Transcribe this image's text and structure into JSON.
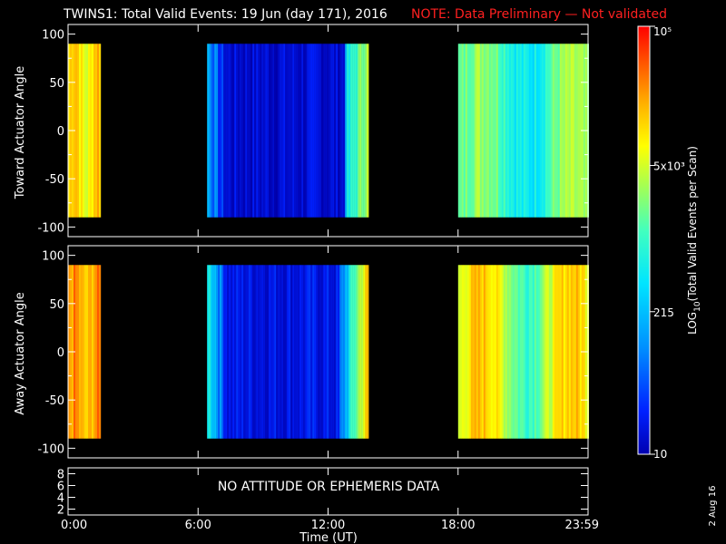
{
  "header": {
    "title": "TWINS1: Total Valid Events: 19 Jun (day 171), 2016",
    "note": "NOTE: Data Preliminary — Not validated"
  },
  "colors": {
    "background": "#000000",
    "axes": "#ffffff",
    "note_text": "#ff2020",
    "colormap": [
      "#0000b0",
      "#0020ff",
      "#0090ff",
      "#00e5ff",
      "#40ffc0",
      "#a8ff50",
      "#ffff00",
      "#ffb000",
      "#ff5000",
      "#ff0000"
    ]
  },
  "colorbar": {
    "label": "LOG10(Total Valid Events per Scan)",
    "label_base": "LOG",
    "label_sub": "10",
    "label_rest": "(Total Valid Events per Scan)",
    "ticks": [
      "10",
      "215",
      "5x10³",
      "10⁵"
    ],
    "tick_values": [
      10,
      215,
      5000,
      100000
    ],
    "scale": "log",
    "range": [
      10,
      100000
    ]
  },
  "chart_data": [
    {
      "type": "heatmap",
      "ylabel": "Toward Actuator Angle",
      "xlim": [
        0,
        24
      ],
      "ylim": [
        -110,
        110
      ],
      "yticks": [
        "100",
        "50",
        "0",
        "-50",
        "-100"
      ],
      "ytick_values": [
        100,
        50,
        0,
        -50,
        -100
      ],
      "data_angle_range": [
        -90,
        90
      ],
      "segments": [
        {
          "start": "00:00",
          "end": "01:30",
          "level": [
            0.62,
            0.78
          ]
        },
        {
          "start": "06:25",
          "end": "13:50",
          "level": [
            0.05,
            0.3
          ]
        },
        {
          "start": "18:00",
          "end": "23:59",
          "level": [
            0.35,
            0.55
          ]
        }
      ],
      "colormap_levels": [
        0.0,
        1.0
      ]
    },
    {
      "type": "heatmap",
      "ylabel": "Away Actuator Angle",
      "xlim": [
        0,
        24
      ],
      "ylim": [
        -110,
        110
      ],
      "yticks": [
        "100",
        "50",
        "0",
        "-50",
        "-100"
      ],
      "ytick_values": [
        100,
        50,
        0,
        -50,
        -100
      ],
      "data_angle_range": [
        -90,
        90
      ],
      "segments": [
        {
          "start": "00:00",
          "end": "01:30",
          "level": [
            0.72,
            0.82
          ]
        },
        {
          "start": "06:25",
          "end": "13:50",
          "level": [
            0.05,
            0.72
          ]
        },
        {
          "start": "18:00",
          "end": "23:59",
          "level": [
            0.45,
            0.75
          ]
        }
      ]
    }
  ],
  "ephemeris_panel": {
    "yticks": [
      "8",
      "6",
      "4",
      "2"
    ],
    "message": "NO ATTITUDE OR EPHEMERIS DATA"
  },
  "x_axis": {
    "label": "Time (UT)",
    "ticks": [
      "0:00",
      "6:00",
      "12:00",
      "18:00",
      "23:59"
    ],
    "tick_hours": [
      0,
      6,
      12,
      18,
      24
    ]
  },
  "footer": {
    "date_stamp": "2 Aug 16"
  }
}
